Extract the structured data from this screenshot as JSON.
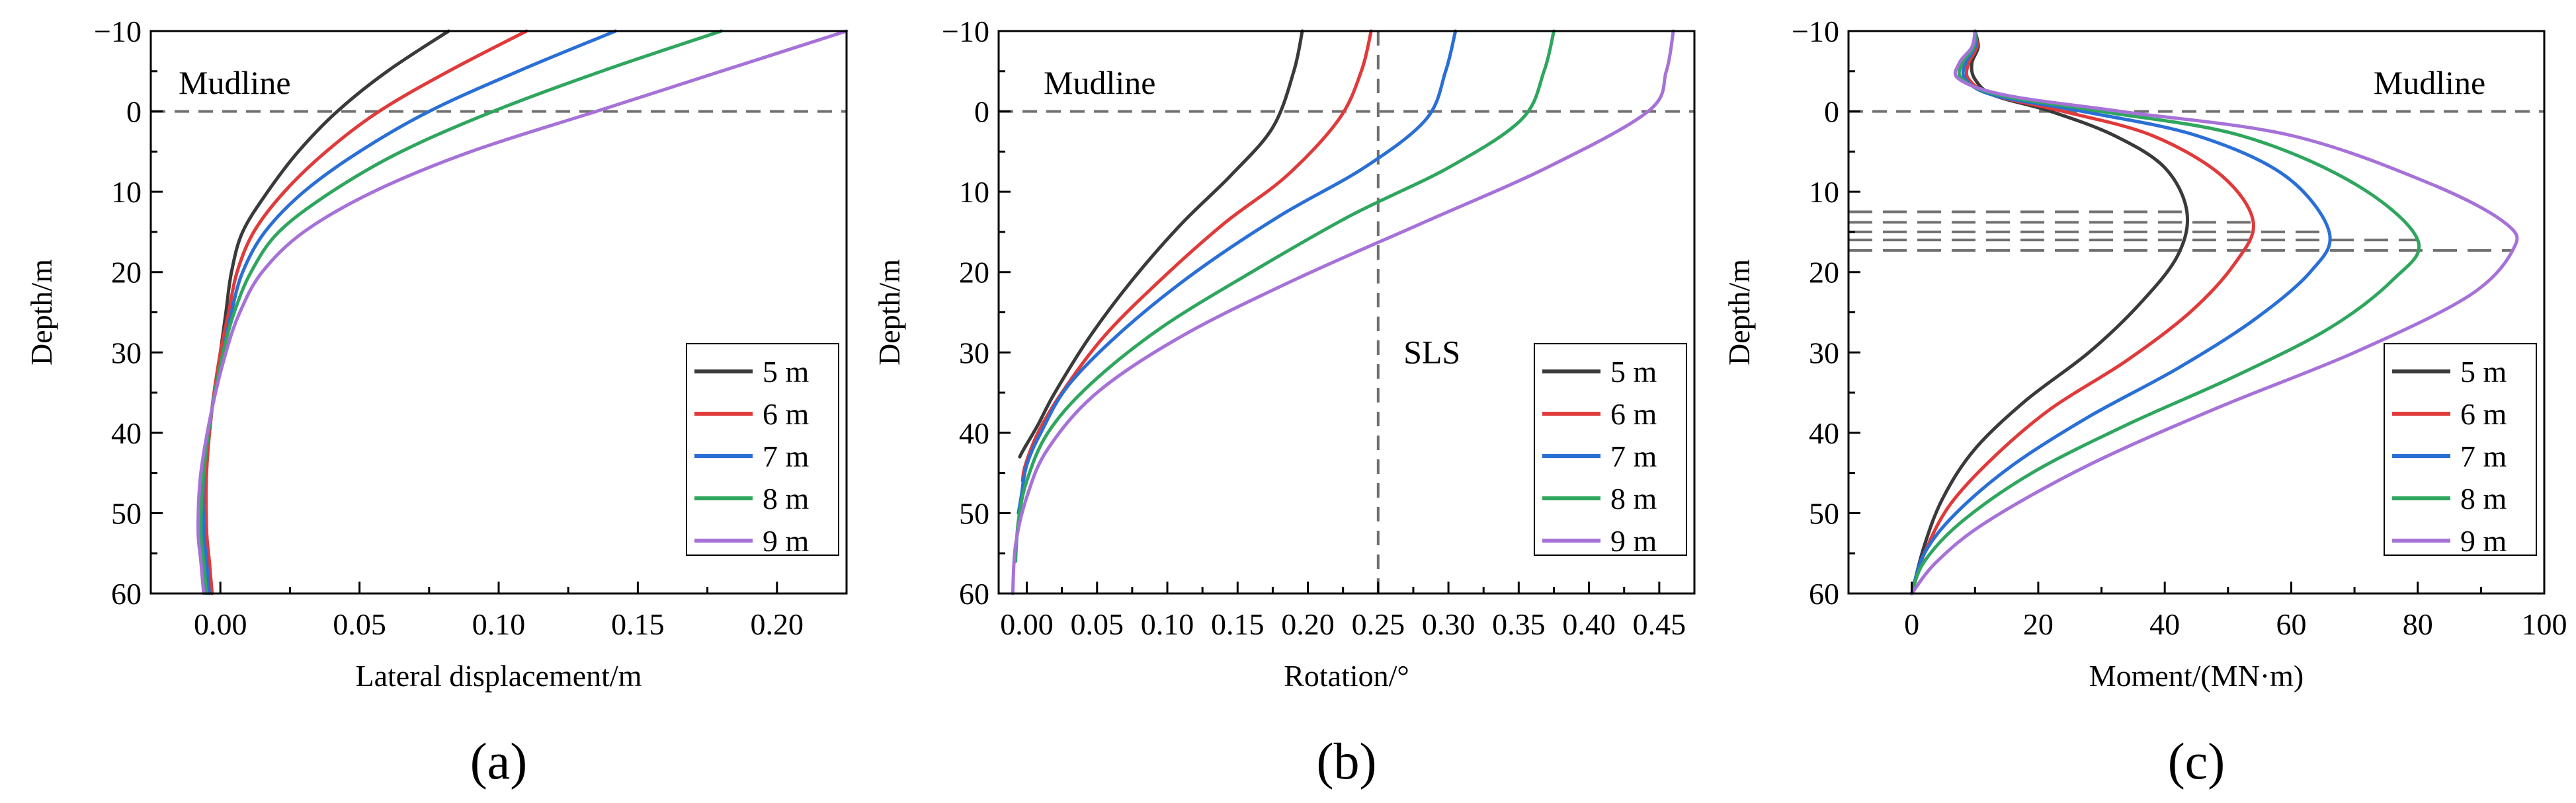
{
  "figure": {
    "legend_labels": [
      "5 m",
      "6 m",
      "7 m",
      "8 m",
      "9 m"
    ],
    "series_colors": [
      "#3a3a3a",
      "#e03a3a",
      "#2a6fd6",
      "#2fa65e",
      "#a672d8"
    ],
    "ref_line_color": "#707070"
  },
  "chart_data": [
    {
      "id": "a",
      "type": "line",
      "panel_label": "(a)",
      "xlabel": "Lateral displacement/m",
      "ylabel": "Depth/m",
      "xlim": [
        -0.025,
        0.225
      ],
      "ylim": [
        -10,
        60
      ],
      "y_inverted": true,
      "xticks": [
        0.0,
        0.05,
        0.1,
        0.15,
        0.2
      ],
      "xtick_labels": [
        "0.00",
        "0.05",
        "0.10",
        "0.15",
        "0.20"
      ],
      "yticks": [
        -10,
        0,
        10,
        20,
        30,
        40,
        50,
        60
      ],
      "ytick_labels": [
        "−10",
        "0",
        "10",
        "20",
        "30",
        "40",
        "50",
        "60"
      ],
      "annotations": [
        {
          "text": "Mudline",
          "x": -0.015,
          "y": -3.5
        }
      ],
      "hlines": [
        {
          "y": 0
        }
      ],
      "vlines": [],
      "legend_position": "bottom-right",
      "series": [
        {
          "name": "5 m",
          "x": [
            0.082,
            0.06,
            0.042,
            0.028,
            0.017,
            0.008,
            0.004,
            0.002,
            0.0,
            -0.003,
            -0.005,
            -0.005,
            -0.004,
            -0.003
          ],
          "y": [
            -10,
            -5,
            0,
            5,
            10,
            15,
            20,
            25,
            30,
            37,
            45,
            52,
            56,
            60
          ]
        },
        {
          "name": "6 m",
          "x": [
            0.11,
            0.082,
            0.057,
            0.038,
            0.023,
            0.012,
            0.006,
            0.003,
            0.0,
            -0.003,
            -0.005,
            -0.005,
            -0.004,
            -0.003
          ],
          "y": [
            -10,
            -5,
            0,
            5,
            10,
            15,
            20,
            25,
            30,
            37,
            45,
            52,
            56,
            60
          ]
        },
        {
          "name": "7 m",
          "x": [
            0.142,
            0.107,
            0.075,
            0.05,
            0.03,
            0.016,
            0.008,
            0.004,
            0.001,
            -0.003,
            -0.006,
            -0.006,
            -0.005,
            -0.004
          ],
          "y": [
            -10,
            -5,
            0,
            5,
            10,
            15,
            20,
            25,
            30,
            37,
            45,
            52,
            56,
            60
          ]
        },
        {
          "name": "8 m",
          "x": [
            0.18,
            0.137,
            0.098,
            0.065,
            0.04,
            0.021,
            0.011,
            0.005,
            0.001,
            -0.003,
            -0.006,
            -0.007,
            -0.006,
            -0.005
          ],
          "y": [
            -10,
            -5,
            0,
            5,
            10,
            15,
            20,
            25,
            30,
            37,
            45,
            52,
            56,
            60
          ]
        },
        {
          "name": "9 m",
          "x": [
            0.225,
            0.18,
            0.135,
            0.09,
            0.055,
            0.03,
            0.015,
            0.007,
            0.002,
            -0.003,
            -0.007,
            -0.008,
            -0.007,
            -0.006
          ],
          "y": [
            -10,
            -5,
            0,
            5,
            10,
            15,
            20,
            25,
            30,
            37,
            45,
            52,
            56,
            60
          ]
        }
      ]
    },
    {
      "id": "b",
      "type": "line",
      "panel_label": "(b)",
      "xlabel": "Rotation/°",
      "ylabel": "Depth/m",
      "xlim": [
        -0.02,
        0.475
      ],
      "ylim": [
        -10,
        60
      ],
      "y_inverted": true,
      "xticks": [
        0.0,
        0.05,
        0.1,
        0.15,
        0.2,
        0.25,
        0.3,
        0.35,
        0.4,
        0.45
      ],
      "xtick_labels": [
        "0.00",
        "0.05",
        "0.10",
        "0.15",
        "0.20",
        "0.25",
        "0.30",
        "0.35",
        "0.40",
        "0.45"
      ],
      "yticks": [
        -10,
        0,
        10,
        20,
        30,
        40,
        50,
        60
      ],
      "ytick_labels": [
        "−10",
        "0",
        "10",
        "20",
        "30",
        "40",
        "50",
        "60"
      ],
      "annotations": [
        {
          "text": "Mudline",
          "x": 0.012,
          "y": -3.5
        },
        {
          "text": "SLS",
          "x": 0.268,
          "y": 30
        }
      ],
      "hlines": [
        {
          "y": 0
        }
      ],
      "vlines": [
        {
          "x": 0.25
        }
      ],
      "legend_position": "bottom-right",
      "series": [
        {
          "name": "5 m",
          "x": [
            0.196,
            0.19,
            0.175,
            0.145,
            0.11,
            0.075,
            0.045,
            0.02,
            0.008,
            -0.002,
            -0.005
          ],
          "y": [
            -10,
            -5,
            2,
            8,
            14,
            21,
            28,
            35,
            39,
            42,
            43
          ]
        },
        {
          "name": "6 m",
          "x": [
            0.245,
            0.238,
            0.222,
            0.185,
            0.14,
            0.095,
            0.055,
            0.025,
            0.008,
            -0.001,
            -0.003
          ],
          "y": [
            -10,
            -5,
            1,
            8,
            14,
            21,
            28,
            35,
            40,
            44,
            46
          ]
        },
        {
          "name": "7 m",
          "x": [
            0.305,
            0.298,
            0.284,
            0.24,
            0.18,
            0.12,
            0.07,
            0.03,
            0.01,
            0.0,
            -0.004,
            -0.006
          ],
          "y": [
            -10,
            -5,
            1,
            7,
            13,
            20,
            27,
            34,
            40,
            44,
            48,
            50
          ]
        },
        {
          "name": "8 m",
          "x": [
            0.375,
            0.368,
            0.352,
            0.3,
            0.23,
            0.16,
            0.095,
            0.045,
            0.015,
            0.0,
            -0.006,
            -0.008
          ],
          "y": [
            -10,
            -5,
            1,
            7,
            13,
            20,
            27,
            34,
            40,
            46,
            51,
            56
          ]
        },
        {
          "name": "9 m",
          "x": [
            0.46,
            0.455,
            0.442,
            0.37,
            0.28,
            0.19,
            0.11,
            0.05,
            0.015,
            0.0,
            -0.008,
            -0.01
          ],
          "y": [
            -10,
            -5,
            0,
            7,
            14,
            21,
            28,
            35,
            42,
            48,
            54,
            60
          ]
        }
      ]
    },
    {
      "id": "c",
      "type": "line",
      "panel_label": "(c)",
      "xlabel": "Moment/(MN·m)",
      "ylabel": "Depth/m",
      "xlim": [
        -10,
        100
      ],
      "ylim": [
        -10,
        60
      ],
      "y_inverted": true,
      "xticks": [
        0,
        20,
        40,
        60,
        80,
        100
      ],
      "xtick_labels": [
        "0",
        "20",
        "40",
        "60",
        "80",
        "100"
      ],
      "yticks": [
        -10,
        0,
        10,
        20,
        30,
        40,
        50,
        60
      ],
      "ytick_labels": [
        "−10",
        "0",
        "10",
        "20",
        "30",
        "40",
        "50",
        "60"
      ],
      "annotations": [
        {
          "text": "Mudline",
          "x": 73,
          "y": -3.5
        }
      ],
      "hlines": [
        {
          "y": 0
        }
      ],
      "peak_hlines": [
        {
          "y": 12.5,
          "x_end": 43.5
        },
        {
          "y": 13.8,
          "x_end": 54
        },
        {
          "y": 15.0,
          "x_end": 66
        },
        {
          "y": 16.0,
          "x_end": 80
        },
        {
          "y": 17.3,
          "x_end": 95
        }
      ],
      "vlines": [],
      "legend_position": "bottom-right",
      "series": [
        {
          "name": "5 m",
          "x": [
            10,
            10.5,
            9.5,
            10,
            13,
            22,
            32,
            40,
            43.5,
            42,
            36,
            28,
            18,
            10,
            5,
            2,
            0
          ],
          "y": [
            -10,
            -8,
            -6,
            -4,
            -2,
            0,
            3,
            7,
            12.5,
            18,
            24,
            30,
            36,
            42,
            48,
            54,
            60
          ]
        },
        {
          "name": "6 m",
          "x": [
            10,
            10.3,
            9,
            9,
            13,
            24,
            38,
            49,
            54,
            51,
            44,
            34,
            22,
            13,
            6,
            2,
            0
          ],
          "y": [
            -10,
            -8,
            -6,
            -4,
            -2,
            0,
            3,
            8,
            13.8,
            19,
            25,
            31,
            37,
            43,
            49,
            55,
            60
          ]
        },
        {
          "name": "7 m",
          "x": [
            10,
            10,
            8.5,
            8.5,
            13,
            27,
            45,
            59,
            66,
            63,
            54,
            42,
            28,
            16,
            7,
            2,
            0
          ],
          "y": [
            -10,
            -8,
            -6,
            -4,
            -2,
            0,
            3,
            8,
            15,
            20,
            26,
            32,
            38,
            44,
            50,
            55,
            60
          ]
        },
        {
          "name": "8 m",
          "x": [
            10,
            9.8,
            8,
            8,
            14,
            30,
            52,
            70,
            80,
            76,
            66,
            51,
            34,
            19,
            8,
            2,
            0
          ],
          "y": [
            -10,
            -8,
            -6,
            -4,
            -2,
            0,
            3,
            9,
            16,
            21,
            27,
            33,
            39,
            45,
            51,
            56,
            60
          ]
        },
        {
          "name": "9 m",
          "x": [
            10,
            9.5,
            7.5,
            7.5,
            15,
            33,
            60,
            82,
            94,
            95,
            88,
            70,
            48,
            28,
            12,
            4,
            0
          ],
          "y": [
            -10,
            -8,
            -6,
            -4,
            -2,
            0,
            3,
            9,
            14,
            17.3,
            23,
            30,
            37,
            44,
            51,
            56,
            60
          ]
        }
      ]
    }
  ]
}
